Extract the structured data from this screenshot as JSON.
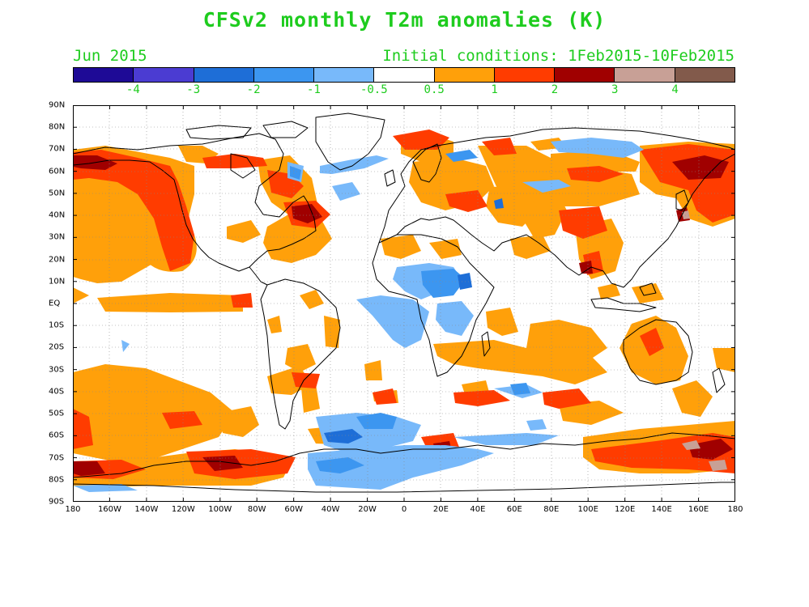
{
  "title": "CFSv2 monthly T2m anomalies (K)",
  "valid_label": "Jun 2015",
  "init_label": "Initial conditions: 1Feb2015-10Feb2015",
  "text_color": "#1ecc1e",
  "colorbar": {
    "colors": [
      "#1e0a96",
      "#4b3cd2",
      "#1e6ed7",
      "#3c96f0",
      "#78b9fa",
      "#ffffff",
      "#ffa00a",
      "#ff3c00",
      "#a00000",
      "#c8a096",
      "#825a4b"
    ],
    "labels": [
      "-4",
      "-3",
      "-2",
      "-1",
      "-0.5",
      "0.5",
      "1",
      "2",
      "3",
      "4"
    ]
  },
  "map": {
    "lat_labels": [
      "90N",
      "80N",
      "70N",
      "60N",
      "50N",
      "40N",
      "30N",
      "20N",
      "10N",
      "EQ",
      "10S",
      "20S",
      "30S",
      "40S",
      "50S",
      "60S",
      "70S",
      "80S",
      "90S"
    ],
    "lon_labels": [
      "180",
      "160W",
      "140W",
      "120W",
      "100W",
      "80W",
      "60W",
      "40W",
      "20W",
      "0",
      "20E",
      "40E",
      "60E",
      "80E",
      "100E",
      "120E",
      "140E",
      "160E",
      "180"
    ]
  }
}
